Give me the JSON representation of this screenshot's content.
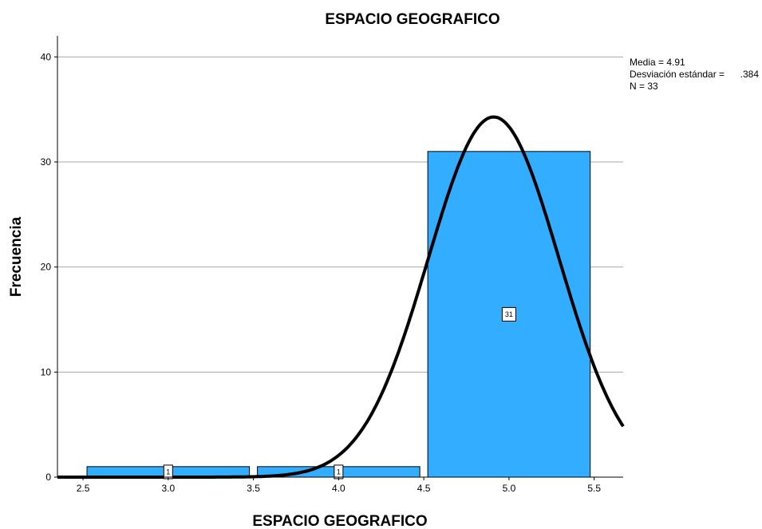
{
  "chart_data": {
    "type": "bar",
    "title": "ESPACIO GEOGRAFICO",
    "xlabel": "ESPACIO GEOGRAFICO",
    "ylabel": "Frecuencia",
    "bins": [
      {
        "x0": 2.5,
        "x1": 3.5,
        "value": 1,
        "label": "1"
      },
      {
        "x0": 3.5,
        "x1": 4.5,
        "value": 1,
        "label": "1"
      },
      {
        "x0": 4.5,
        "x1": 5.5,
        "value": 31,
        "label": "31"
      }
    ],
    "xlim": [
      2.35,
      5.67
    ],
    "ylim": [
      0,
      42
    ],
    "x_ticks": [
      2.5,
      3.0,
      3.5,
      4.0,
      4.5,
      5.0,
      5.5
    ],
    "x_tick_labels": [
      "2.5",
      "3.0",
      "3.5",
      "4.0",
      "4.5",
      "5.0",
      "5.5"
    ],
    "y_ticks": [
      0,
      10,
      20,
      30,
      40
    ],
    "y_tick_labels": [
      "0",
      "10",
      "20",
      "30",
      "40"
    ],
    "grid": "horizontal",
    "bar_color": "#33adff",
    "curve_color": "#000000",
    "normal_curve": {
      "mean": 4.91,
      "sd": 0.384,
      "n": 33,
      "bin_width": 1
    }
  },
  "stats": {
    "mean_label": "Media = ",
    "mean_value": "4.91",
    "sd_label": "Desviación estándar = ",
    "sd_value": ".384",
    "n_label": "N = 33"
  }
}
